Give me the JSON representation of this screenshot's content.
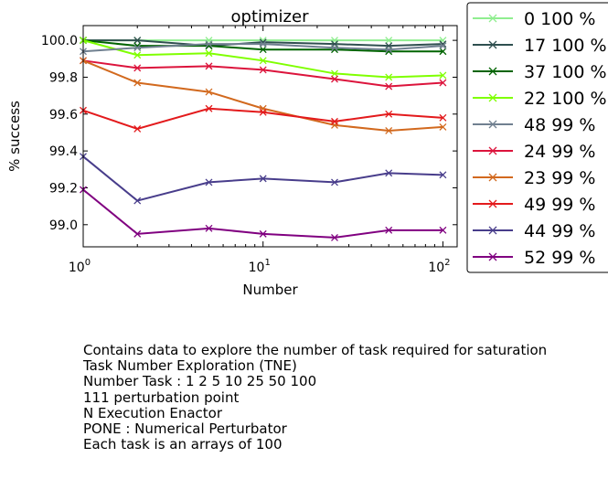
{
  "chart_data": {
    "type": "line",
    "title": "optimizer",
    "xlabel": "Number",
    "ylabel": "% success",
    "xscale": "log",
    "xlim": [
      1,
      120
    ],
    "ylim": [
      98.88,
      100.08
    ],
    "x_ticks": [
      {
        "value": 1,
        "base": "10",
        "exp": "0"
      },
      {
        "value": 10,
        "base": "10",
        "exp": "1"
      },
      {
        "value": 100,
        "base": "10",
        "exp": "2"
      }
    ],
    "y_ticks": [
      {
        "value": 99.0,
        "label": "99.0"
      },
      {
        "value": 99.2,
        "label": "99.2"
      },
      {
        "value": 99.4,
        "label": "99.4"
      },
      {
        "value": 99.6,
        "label": "99.6"
      },
      {
        "value": 99.8,
        "label": "99.8"
      },
      {
        "value": 100.0,
        "label": "100.0"
      }
    ],
    "marker": "x",
    "legend_position": "outside-right",
    "x": [
      1,
      2,
      5,
      10,
      25,
      50,
      100
    ],
    "series": [
      {
        "name": "0 100 %",
        "color": "#90ee90",
        "values": [
          100.0,
          100.0,
          100.0,
          100.0,
          100.0,
          100.0,
          100.0
        ]
      },
      {
        "name": "17 100 %",
        "color": "#2f4f4f",
        "values": [
          100.0,
          100.0,
          99.97,
          99.99,
          99.98,
          99.97,
          99.98
        ]
      },
      {
        "name": "37 100 %",
        "color": "#006400",
        "values": [
          100.0,
          99.97,
          99.97,
          99.95,
          99.95,
          99.94,
          99.94
        ]
      },
      {
        "name": "22 100 %",
        "color": "#7fff00",
        "values": [
          100.0,
          99.92,
          99.93,
          99.89,
          99.82,
          99.8,
          99.81
        ]
      },
      {
        "name": "48 99 %",
        "color": "#708090",
        "values": [
          99.94,
          99.96,
          99.98,
          99.98,
          99.96,
          99.95,
          99.97
        ]
      },
      {
        "name": "24 99 %",
        "color": "#dc143c",
        "values": [
          99.89,
          99.85,
          99.86,
          99.84,
          99.79,
          99.75,
          99.77
        ]
      },
      {
        "name": "23 99 %",
        "color": "#d2691e",
        "values": [
          99.89,
          99.77,
          99.72,
          99.63,
          99.54,
          99.51,
          99.53
        ]
      },
      {
        "name": "49 99 %",
        "color": "#e31a1c",
        "values": [
          99.62,
          99.52,
          99.63,
          99.61,
          99.56,
          99.6,
          99.58
        ]
      },
      {
        "name": "44 99 %",
        "color": "#483d8b",
        "values": [
          99.37,
          99.13,
          99.23,
          99.25,
          99.23,
          99.28,
          99.27
        ]
      },
      {
        "name": "52 99 %",
        "color": "#800080",
        "values": [
          99.19,
          98.95,
          98.98,
          98.95,
          98.93,
          98.97,
          98.97
        ]
      }
    ]
  },
  "caption_lines": [
    "Contains data to explore the number of task required for saturation",
    "Task Number Exploration (TNE)",
    "Number Task : 1 2 5 10 25 50 100",
    "111 perturbation point",
    "N Execution Enactor",
    "PONE : Numerical Perturbator",
    "Each task is an arrays of 100"
  ]
}
